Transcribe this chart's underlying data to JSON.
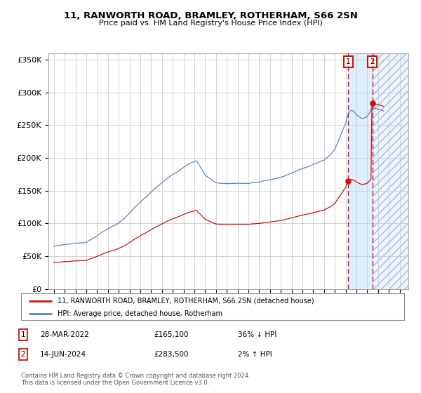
{
  "title": "11, RANWORTH ROAD, BRAMLEY, ROTHERHAM, S66 2SN",
  "subtitle": "Price paid vs. HM Land Registry's House Price Index (HPI)",
  "legend_line1": "11, RANWORTH ROAD, BRAMLEY, ROTHERHAM, S66 2SN (detached house)",
  "legend_line2": "HPI: Average price, detached house, Rotherham",
  "sale1_date": "28-MAR-2022",
  "sale1_price": "£165,100",
  "sale1_hpi": "36% ↓ HPI",
  "sale2_date": "14-JUN-2024",
  "sale2_price": "£283,500",
  "sale2_hpi": "2% ↑ HPI",
  "footer": "Contains HM Land Registry data © Crown copyright and database right 2024.\nThis data is licensed under the Open Government Licence v3.0.",
  "hpi_color": "#5588bb",
  "property_color": "#cc1111",
  "marker_color": "#cc1111",
  "bg_color": "#ffffff",
  "grid_color": "#cccccc",
  "highlight_color": "#ddeeff",
  "hatch_color": "#aabbcc",
  "ylim": [
    0,
    360000
  ],
  "yticks": [
    0,
    50000,
    100000,
    150000,
    200000,
    250000,
    300000,
    350000
  ],
  "ytick_labels": [
    "£0",
    "£50K",
    "£100K",
    "£150K",
    "£200K",
    "£250K",
    "£300K",
    "£350K"
  ],
  "xstart": 1995,
  "xend": 2027,
  "sale1_year": 2022.24,
  "sale2_year": 2024.46,
  "sale1_value": 165100,
  "sale2_value": 283500
}
